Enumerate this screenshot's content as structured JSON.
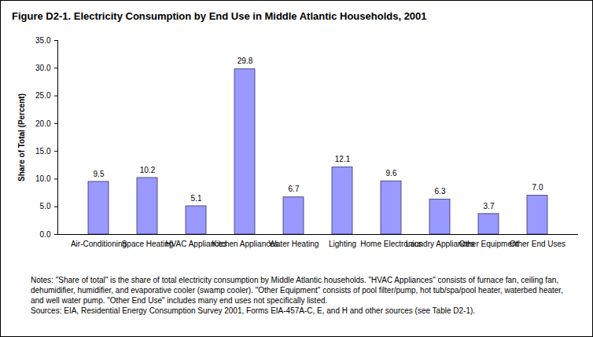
{
  "chart_data": {
    "type": "bar",
    "title": "Figure D2-1.  Electricity Consumption by End Use in Middle Atlantic Households, 2001",
    "y_label": "Share of Total (Percent)",
    "categories": [
      "Air-Conditioning",
      "Space Heating",
      "HVAC Appliances",
      "Kitchen Appliances",
      "Water Heating",
      "Lighting",
      "Home Electronics",
      "Laundry Appliances",
      "Other Equipment",
      "Other End Uses"
    ],
    "values": [
      9.5,
      10.2,
      5.1,
      29.8,
      6.7,
      12.1,
      9.6,
      6.3,
      3.7,
      7.0
    ],
    "value_labels": [
      "9.5",
      "10.2",
      "5.1",
      "29.8",
      "6.7",
      "12.1",
      "9.6",
      "6.3",
      "3.7",
      "7.0"
    ],
    "data_labels": true,
    "color": "#9999ff",
    "ylim": [
      0,
      35
    ],
    "yticks": [
      {
        "value": 0,
        "label": "0.0"
      },
      {
        "value": 5,
        "label": "5.0"
      },
      {
        "value": 10,
        "label": "10.0"
      },
      {
        "value": 15,
        "label": "15.0"
      },
      {
        "value": 20,
        "label": "20.0"
      },
      {
        "value": 25,
        "label": "25.0"
      },
      {
        "value": 30,
        "label": "30.0"
      },
      {
        "value": 35,
        "label": "35.0"
      }
    ],
    "grid": false,
    "notes": "Notes:  \"Share of total\" is the share of total electricity consumption by Middle Atlantic households. \"HVAC Appliances\" consists of furnace fan, ceiling fan, dehumidifier, humidifier, and evaporative cooler (swamp cooler). \"Other Equipment\" consists of pool filter/pump, hot tub/spa/pool heater, waterbed heater, and well water pump. \"Other End Use\" includes many end uses not specifically listed.",
    "sources": "Sources:  EIA, Residential Energy Consumption Survey 2001, Forms EIA-457A-C, E, and H and other sources (see Table D2-1)."
  }
}
